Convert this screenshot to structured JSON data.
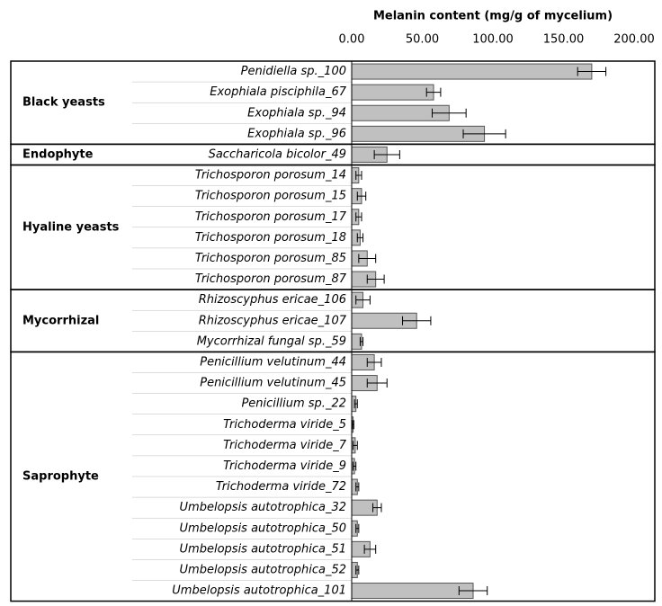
{
  "chart_data": {
    "type": "bar",
    "x_label": "Melanin content (mg/g of mycelium)",
    "xlim": [
      0,
      200
    ],
    "xticks": [
      {
        "value": 0,
        "label": "0.00"
      },
      {
        "value": 50,
        "label": "50.00"
      },
      {
        "value": 100,
        "label": "100.00"
      },
      {
        "value": 150,
        "label": "150.00"
      },
      {
        "value": 200,
        "label": "200.00"
      }
    ],
    "color": "#c0c0c0",
    "groups": [
      {
        "name": "Black yeasts",
        "categories": [
          "Penidiella sp._100",
          "Exophiala pisciphila_67",
          "Exophiala sp._94",
          "Exophiala sp._96"
        ],
        "values": [
          170,
          58,
          69,
          94
        ],
        "errors": [
          10,
          5,
          12,
          15
        ]
      },
      {
        "name": "Endophyte",
        "categories": [
          "Saccharicola bicolor_49"
        ],
        "values": [
          25
        ],
        "errors": [
          9
        ]
      },
      {
        "name": "Hyaline yeasts",
        "categories": [
          "Trichosporon porosum_14",
          "Trichosporon porosum_15",
          "Trichosporon porosum_17",
          "Trichosporon porosum_18",
          "Trichosporon porosum_85",
          "Trichosporon porosum_87"
        ],
        "values": [
          5,
          7,
          5,
          6,
          11,
          17
        ],
        "errors": [
          2,
          3,
          2,
          2,
          6,
          6
        ]
      },
      {
        "name": "Mycorrhizal",
        "categories": [
          "Rhizoscyphus ericae_106",
          "Rhizoscyphus ericae_107",
          "Mycorrhizal fungal sp._59"
        ],
        "values": [
          8,
          46,
          7
        ],
        "errors": [
          5,
          10,
          1
        ]
      },
      {
        "name": "Saprophyte",
        "categories": [
          "Penicillium velutinum_44",
          "Penicillium velutinum_45",
          "Penicillium sp._22",
          "Trichoderma viride_5",
          "Trichoderma viride_7",
          "Trichoderma viride_9",
          "Trichoderma viride_72",
          "Umbelopsis autotrophica_32",
          "Umbelopsis autotrophica_50",
          "Umbelopsis autotrophica_51",
          "Umbelopsis autotrophica_52",
          "Umbelopsis autotrophica_101"
        ],
        "values": [
          16,
          18,
          3,
          1,
          2.5,
          2,
          4,
          18,
          4,
          13,
          4,
          86
        ],
        "errors": [
          5,
          7,
          1,
          0.5,
          1.5,
          1,
          1,
          3,
          1,
          4,
          1,
          10
        ]
      }
    ]
  }
}
